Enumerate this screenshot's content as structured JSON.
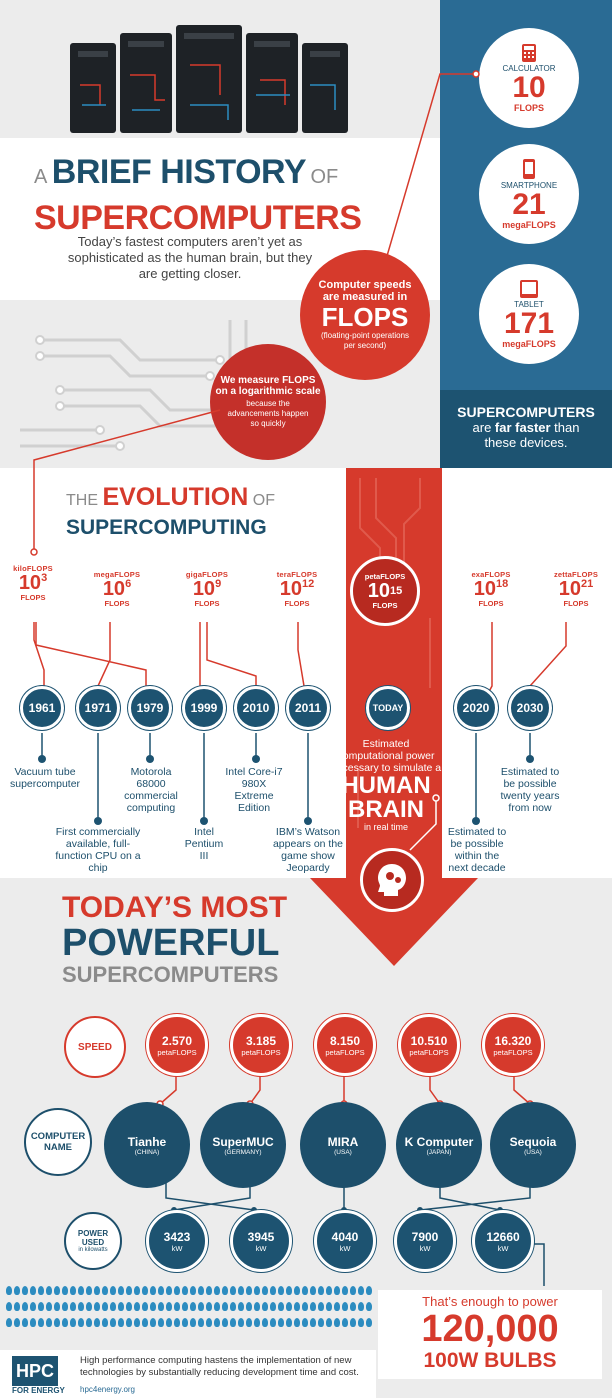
{
  "header": {
    "title_a": "A",
    "title_brief_history": "BRIEF HISTORY",
    "title_of": "OF",
    "title_supercomputers": "SUPERCOMPUTERS",
    "intro": "Today’s fastest computers aren’t yet as sophisticated as the human brain, but they are getting closer."
  },
  "devices": [
    {
      "name": "CALCULATOR",
      "value": "10",
      "unit": "FLOPS",
      "icon": "calculator-icon"
    },
    {
      "name": "SMARTPHONE",
      "value": "21",
      "unit": "megaFLOPS",
      "icon": "smartphone-icon"
    },
    {
      "name": "TABLET",
      "value": "171",
      "unit": "megaFLOPS",
      "icon": "tablet-icon"
    }
  ],
  "devices_summary": {
    "line1": "SUPERCOMPUTERS",
    "line2_pre": "are ",
    "line2_bold": "far faster",
    "line2_post": " than",
    "line3": "these devices."
  },
  "flops_bubble": {
    "line1": "Computer speeds",
    "line2": "are measured in",
    "big": "FLOPS",
    "sub": "(floating-point operations per second)"
  },
  "log_bubble": {
    "line1": "We measure FLOPS",
    "line2": "on a logarithmic scale",
    "sub": "because the advancements happen so quickly"
  },
  "evolution": {
    "the": "THE",
    "evolution": "EVOLUTION",
    "of": "OF",
    "supercomputing": "SUPERCOMPUTING",
    "scale": [
      {
        "label": "kiloFLOPS",
        "exp": "3",
        "base": "10",
        "unit": "FLOPS"
      },
      {
        "label": "megaFLOPS",
        "exp": "6",
        "base": "10",
        "unit": "FLOPS"
      },
      {
        "label": "gigaFLOPS",
        "exp": "9",
        "base": "10",
        "unit": "FLOPS"
      },
      {
        "label": "teraFLOPS",
        "exp": "12",
        "base": "10",
        "unit": "FLOPS"
      },
      {
        "label": "petaFLOPS",
        "exp": "15",
        "base": "10",
        "unit": "FLOPS"
      },
      {
        "label": "exaFLOPS",
        "exp": "18",
        "base": "10",
        "unit": "FLOPS"
      },
      {
        "label": "zettaFLOPS",
        "exp": "21",
        "base": "10",
        "unit": "FLOPS"
      }
    ],
    "years": [
      "1961",
      "1971",
      "1979",
      "1999",
      "2010",
      "2011",
      "TODAY",
      "2020",
      "2030"
    ],
    "events": {
      "e1961": "Vacuum tube supercomputer",
      "e1971": "First commercially available, full-function CPU on a chip",
      "e1979": "Motorola 68000 commercial computing",
      "e1999": "Intel Pentium III",
      "e2010": "Intel Core-i7 980X Extreme Edition",
      "e2011": "IBM’s Watson appears on the game show Jeopardy",
      "e2020": "Estimated to be possible within the next decade",
      "e2030": "Estimated to be possible twenty years from now"
    },
    "brain": {
      "line1": "Estimated",
      "line2": "computational power",
      "line3": "necessary to simulate a",
      "big1": "HUMAN",
      "big2": "BRAIN",
      "sub": "in real time"
    }
  },
  "powerful": {
    "line1": "TODAY’S MOST",
    "line2": "POWERFUL",
    "line3": "SUPERCOMPUTERS",
    "speed_label": "SPEED",
    "name_label_1": "COMPUTER",
    "name_label_2": "NAME",
    "power_label_1": "POWER",
    "power_label_2": "USED",
    "power_label_3": "in kilowatts",
    "speeds": [
      {
        "value": "2.570",
        "unit": "petaFLOPS"
      },
      {
        "value": "3.185",
        "unit": "petaFLOPS"
      },
      {
        "value": "8.150",
        "unit": "petaFLOPS"
      },
      {
        "value": "10.510",
        "unit": "petaFLOPS"
      },
      {
        "value": "16.320",
        "unit": "petaFLOPS"
      }
    ],
    "computers": [
      {
        "name": "Tianhe",
        "country": "(CHINA)"
      },
      {
        "name": "SuperMUC",
        "country": "(GERMANY)"
      },
      {
        "name": "MIRA",
        "country": "(USA)"
      },
      {
        "name": "K Computer",
        "country": "(JAPAN)"
      },
      {
        "name": "Sequoia",
        "country": "(USA)"
      }
    ],
    "powers": [
      {
        "value": "3423",
        "unit": "kW"
      },
      {
        "value": "3945",
        "unit": "kW"
      },
      {
        "value": "4040",
        "unit": "kW"
      },
      {
        "value": "7900",
        "unit": "kW"
      },
      {
        "value": "12660",
        "unit": "kW"
      }
    ]
  },
  "bulbs": {
    "line1": "That’s enough to power",
    "big": "120,000",
    "sub": "100W BULBS"
  },
  "footer": {
    "logo": "HPC",
    "logo_sub": "FOR ENERGY",
    "url": "hpc4energy.org",
    "text": "High performance computing hastens the implementation of new technologies by substantially reducing development time and cost."
  },
  "colors": {
    "red": "#d63a2c",
    "navy": "#1d4f6b",
    "blue_panel": "#2a6b94",
    "gray_bg": "#ececec"
  }
}
